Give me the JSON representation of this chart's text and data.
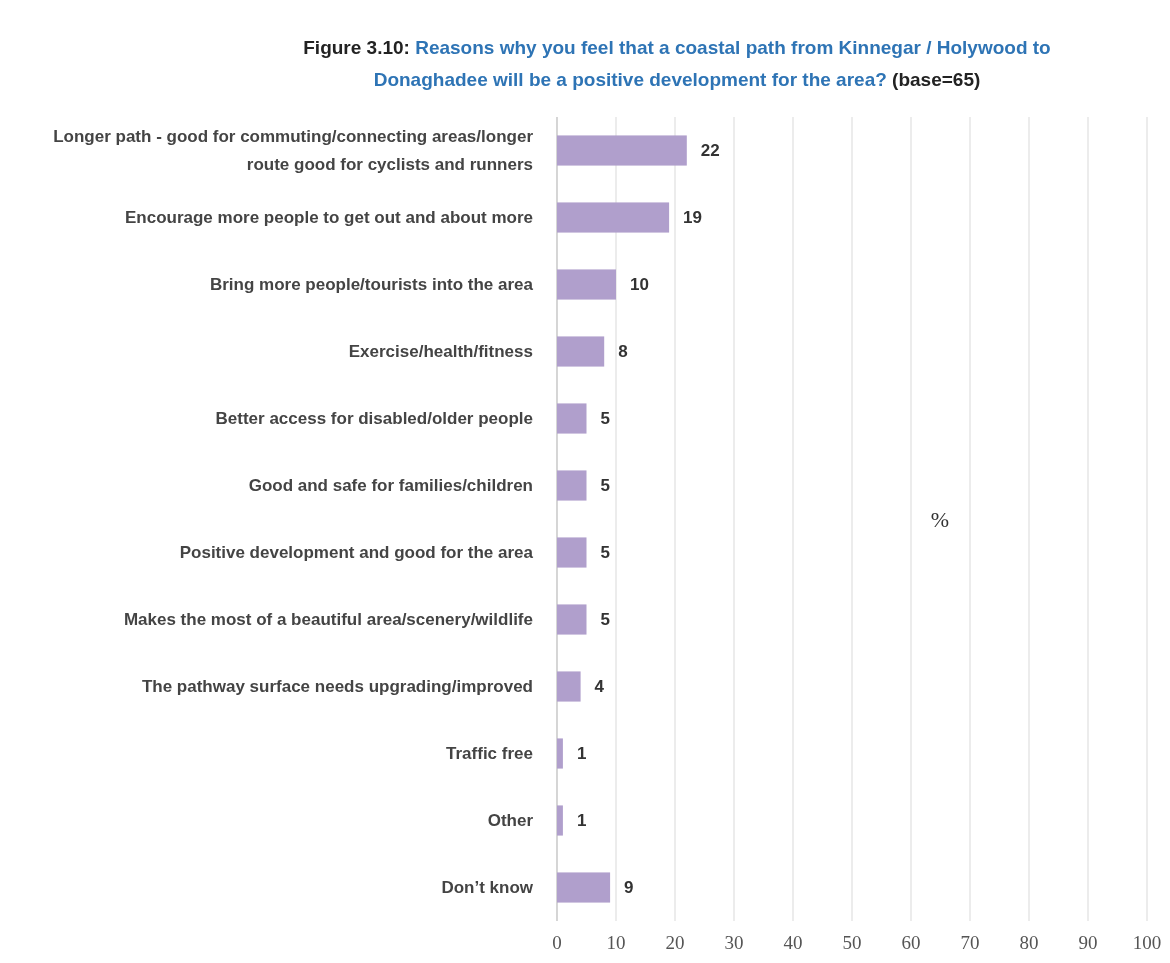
{
  "chart_data": {
    "type": "bar",
    "orientation": "horizontal",
    "title": "Figure 3.10: Reasons why you feel that a coastal path from Kinnegar / Holywood to Donaghadee will be a positive development for the area? (base=65)",
    "xlabel": "%",
    "categories": [
      "Longer path - good for commuting/connecting areas/longer route good for cyclists and runners",
      "Encourage more people to get out and about more",
      "Bring more people/tourists into the area",
      "Exercise/health/fitness",
      "Better access for disabled/older people",
      "Good and safe for families/children",
      "Positive development and good for the area",
      "Makes the most of a beautiful area/scenery/wildlife",
      "The pathway surface needs upgrading/improved",
      "Traffic free",
      "Other",
      "Don’t know"
    ],
    "values": [
      22,
      19,
      10,
      8,
      5,
      5,
      5,
      5,
      4,
      1,
      1,
      9
    ],
    "color": "#b09fcc",
    "data_labels": true,
    "grid": "x",
    "xlim": [
      0,
      100
    ],
    "xticks": [
      0,
      10,
      20,
      30,
      40,
      50,
      60,
      70,
      80,
      90,
      100
    ]
  }
}
